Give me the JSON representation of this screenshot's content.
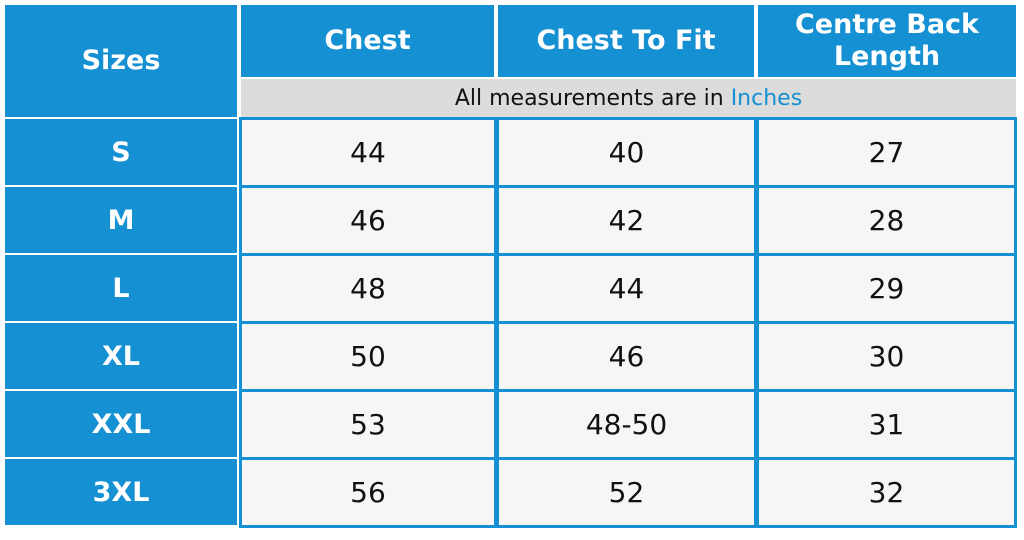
{
  "table": {
    "header": [
      "Sizes",
      "Chest",
      "Chest To Fit",
      "Centre Back Length"
    ],
    "note": {
      "text": "All measurements are in",
      "unit": "Inches"
    },
    "rows": [
      [
        "S",
        44,
        40,
        27
      ],
      [
        "M",
        46,
        42,
        28
      ],
      [
        "L",
        48,
        44,
        29
      ],
      [
        "XL",
        50,
        46,
        30
      ],
      [
        "XXL",
        53,
        "48-50",
        31
      ],
      [
        "3XL",
        56,
        52,
        32
      ]
    ]
  }
}
